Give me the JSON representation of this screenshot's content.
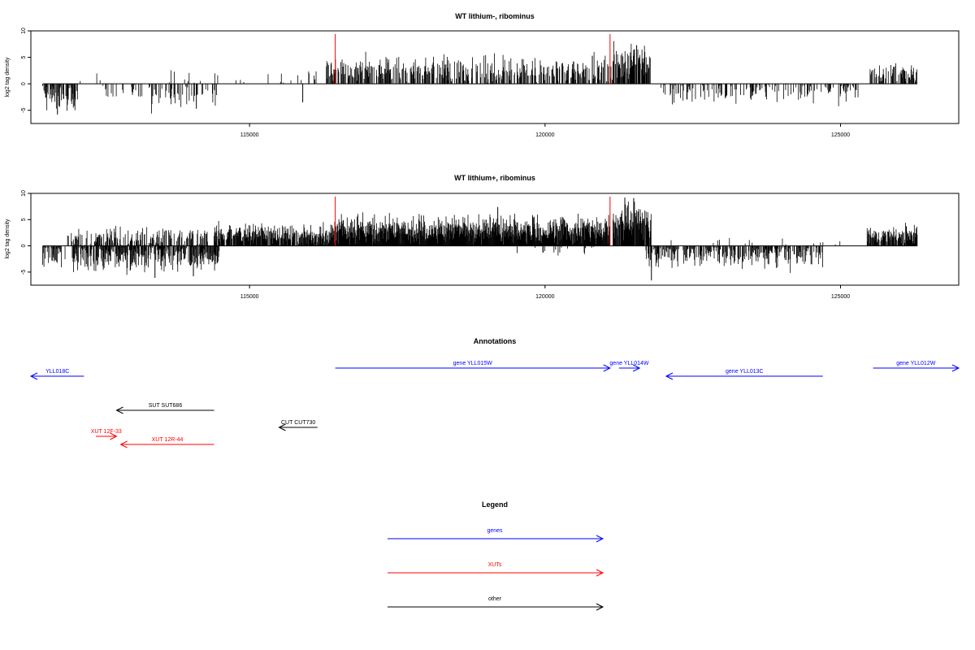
{
  "chart_data": [
    {
      "type": "bar",
      "title": "WT lithium-, ribominus",
      "ylabel": "log2 tag density",
      "xlabel": "",
      "xlim": [
        111300,
        127000
      ],
      "ylim": [
        -7.5,
        10
      ],
      "yticks": [
        -5,
        0,
        5,
        10
      ],
      "ytick_labels": [
        "-5",
        "0",
        "5",
        "10"
      ],
      "xticks": [
        115000,
        120000,
        125000
      ],
      "xtick_labels": [
        "115000",
        "120000",
        "125000"
      ],
      "colors": {
        "bars": "#000000",
        "markers": "#ff0000"
      },
      "markers_x": [
        116450,
        121100
      ],
      "seed": 11,
      "segments": [
        {
          "x0": 111500,
          "x1": 112100,
          "sign": -1,
          "mean": 2.5,
          "spread": 2.6,
          "density": 0.55
        },
        {
          "x0": 112100,
          "x1": 112500,
          "sign": 1,
          "mean": 0.4,
          "spread": 1.2,
          "density": 0.04
        },
        {
          "x0": 112500,
          "x1": 113300,
          "sign": -1,
          "mean": 1.6,
          "spread": 1.8,
          "density": 0.25
        },
        {
          "x0": 113300,
          "x1": 114500,
          "sign": -1,
          "mean": 1.9,
          "spread": 2.6,
          "density": 0.3
        },
        {
          "x0": 113600,
          "x1": 115000,
          "sign": 1,
          "mean": 1.0,
          "spread": 2.2,
          "density": 0.06
        },
        {
          "x0": 115300,
          "x1": 116300,
          "sign": 1,
          "mean": 1.3,
          "spread": 1.8,
          "density": 0.08
        },
        {
          "x0": 116300,
          "x1": 121150,
          "sign": 1,
          "mean": 2.5,
          "spread": 2.6,
          "density": 0.55
        },
        {
          "x0": 121150,
          "x1": 121800,
          "sign": 1,
          "mean": 4.2,
          "spread": 3.0,
          "density": 0.7
        },
        {
          "x0": 121950,
          "x1": 125300,
          "sign": -1,
          "mean": 1.6,
          "spread": 2.0,
          "density": 0.3
        },
        {
          "x0": 125500,
          "x1": 126300,
          "sign": 1,
          "mean": 2.1,
          "spread": 1.8,
          "density": 0.6
        }
      ],
      "tall_bars": [
        {
          "x": 121550,
          "y": 7.3
        },
        {
          "x": 121500,
          "y": 6.4
        },
        {
          "x": 115900,
          "y": -3.5
        },
        {
          "x": 114100,
          "y": -4.7
        },
        {
          "x": 111750,
          "y": -5.8
        },
        {
          "x": 120800,
          "y": 5.3
        }
      ]
    },
    {
      "type": "bar",
      "title": "WT lithium+, ribominus",
      "ylabel": "log2 tag density",
      "xlabel": "",
      "xlim": [
        111300,
        127000
      ],
      "ylim": [
        -7.5,
        10
      ],
      "yticks": [
        -5,
        0,
        5,
        10
      ],
      "ytick_labels": [
        "-5",
        "0",
        "5",
        "10"
      ],
      "xticks": [
        115000,
        120000,
        125000
      ],
      "xtick_labels": [
        "115000",
        "120000",
        "125000"
      ],
      "colors": {
        "bars": "#000000",
        "markers": "#ff0000"
      },
      "markers_x": [
        116450,
        121100
      ],
      "seed": 29,
      "segments": [
        {
          "x0": 111500,
          "x1": 111900,
          "sign": -1,
          "mean": 1.8,
          "spread": 2.2,
          "density": 0.6
        },
        {
          "x0": 111900,
          "x1": 112500,
          "sign": 1,
          "mean": 1.4,
          "spread": 1.7,
          "density": 0.4
        },
        {
          "x0": 112000,
          "x1": 114500,
          "sign": -1,
          "mean": 2.3,
          "spread": 2.6,
          "density": 0.75
        },
        {
          "x0": 112400,
          "x1": 114300,
          "sign": 1,
          "mean": 1.6,
          "spread": 2.0,
          "density": 0.45
        },
        {
          "x0": 114400,
          "x1": 116400,
          "sign": 1,
          "mean": 2.2,
          "spread": 1.9,
          "density": 0.85
        },
        {
          "x0": 116400,
          "x1": 121100,
          "sign": 1,
          "mean": 3.0,
          "spread": 2.8,
          "density": 1.0
        },
        {
          "x0": 119500,
          "x1": 121000,
          "sign": -1,
          "mean": 0.9,
          "spread": 1.0,
          "density": 0.08
        },
        {
          "x0": 121150,
          "x1": 121800,
          "sign": 1,
          "mean": 4.5,
          "spread": 3.2,
          "density": 0.9
        },
        {
          "x0": 121700,
          "x1": 124700,
          "sign": -1,
          "mean": 1.9,
          "spread": 2.3,
          "density": 0.55
        },
        {
          "x0": 122000,
          "x1": 125000,
          "sign": 1,
          "mean": 0.8,
          "spread": 1.0,
          "density": 0.05
        },
        {
          "x0": 125450,
          "x1": 126300,
          "sign": 1,
          "mean": 2.0,
          "spread": 1.8,
          "density": 0.85
        }
      ],
      "tall_bars": [
        {
          "x": 121500,
          "y": 9.1
        },
        {
          "x": 121350,
          "y": 9.2
        },
        {
          "x": 121800,
          "y": -6.6
        },
        {
          "x": 113400,
          "y": -6.1
        },
        {
          "x": 114050,
          "y": -5.8
        },
        {
          "x": 119200,
          "y": 7.4
        }
      ]
    }
  ],
  "annotations": {
    "title": "Annotations",
    "features": [
      {
        "label": "YLL018C",
        "x0": 111300,
        "x1": 112200,
        "strand": "-",
        "color": "#0000ff",
        "row": 1
      },
      {
        "label": "gene YLL015W",
        "x0": 116450,
        "x1": 121100,
        "strand": "+",
        "color": "#0000ff",
        "row": 0
      },
      {
        "label": "gene YLL014W",
        "x0": 121250,
        "x1": 121600,
        "strand": "+",
        "color": "#0000ff",
        "row": 0
      },
      {
        "label": "gene YLL013C",
        "x0": 122050,
        "x1": 124700,
        "strand": "-",
        "color": "#0000ff",
        "row": 1
      },
      {
        "label": "gene YLL012W",
        "x0": 125550,
        "x1": 127000,
        "strand": "+",
        "color": "#0000ff",
        "row": 0
      },
      {
        "label": "SUT SUT686",
        "x0": 112750,
        "x1": 114400,
        "strand": "-",
        "color": "#000000",
        "row": 2
      },
      {
        "label": "CUT CUT730",
        "x0": 115500,
        "x1": 116150,
        "strand": "-",
        "color": "#000000",
        "row": 3
      },
      {
        "label": "XUT 12F-33",
        "x0": 112400,
        "x1": 112750,
        "strand": "+",
        "color": "#ff0000",
        "row": 4
      },
      {
        "label": "XUT 12R-44",
        "x0": 112820,
        "x1": 114400,
        "strand": "-",
        "color": "#ff0000",
        "row": 5
      }
    ]
  },
  "legend": {
    "title": "Legend",
    "entries": [
      {
        "label": "genes",
        "color": "#0000ff"
      },
      {
        "label": "XUTs",
        "color": "#ff0000"
      },
      {
        "label": "other",
        "color": "#000000"
      }
    ]
  }
}
